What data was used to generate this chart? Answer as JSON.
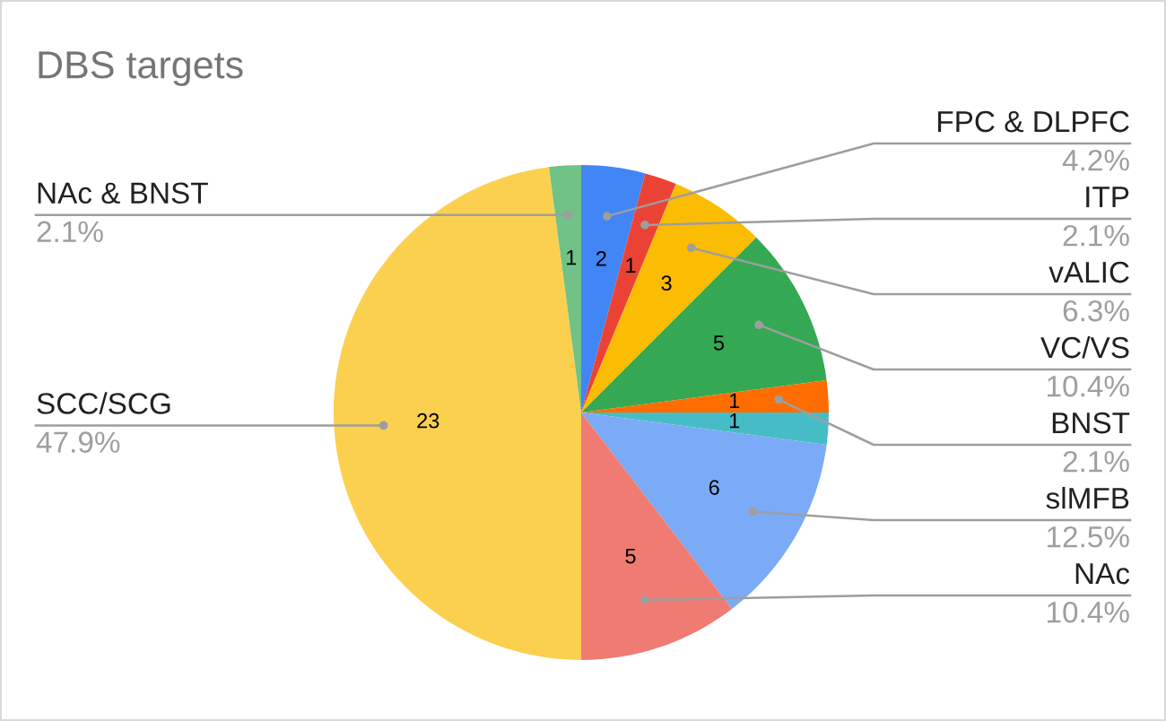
{
  "chart_data": {
    "type": "pie",
    "title": "DBS targets",
    "categories": [
      "FPC & DLPFC",
      "ITP",
      "vALIC",
      "VC/VS",
      "BNST",
      null,
      "slMFB",
      "NAc",
      "SCC/SCG",
      "NAc & BNST"
    ],
    "values": [
      2,
      1,
      3,
      5,
      1,
      1,
      6,
      5,
      23,
      1
    ],
    "colors": [
      "#4285f4",
      "#ea4335",
      "#fbbc04",
      "#34a853",
      "#ff6d01",
      "#46bdc6",
      "#7baaf7",
      "#f07b72",
      "#fcd04f",
      "#71c287"
    ],
    "data_labels": true,
    "annotations": [
      {
        "text": "4.2%",
        "x": "FPC & DLPFC"
      },
      {
        "text": "2.1%",
        "x": "ITP"
      },
      {
        "text": "6.3%",
        "x": "vALIC"
      },
      {
        "text": "10.4%",
        "x": "VC/VS"
      },
      {
        "text": "2.1%",
        "x": "BNST"
      },
      {
        "text": "12.5%",
        "x": "slMFB"
      },
      {
        "text": "10.4%",
        "x": "NAc"
      },
      {
        "text": "47.9%",
        "x": "SCC/SCG"
      },
      {
        "text": "2.1%",
        "x": "NAc & BNST"
      }
    ]
  }
}
